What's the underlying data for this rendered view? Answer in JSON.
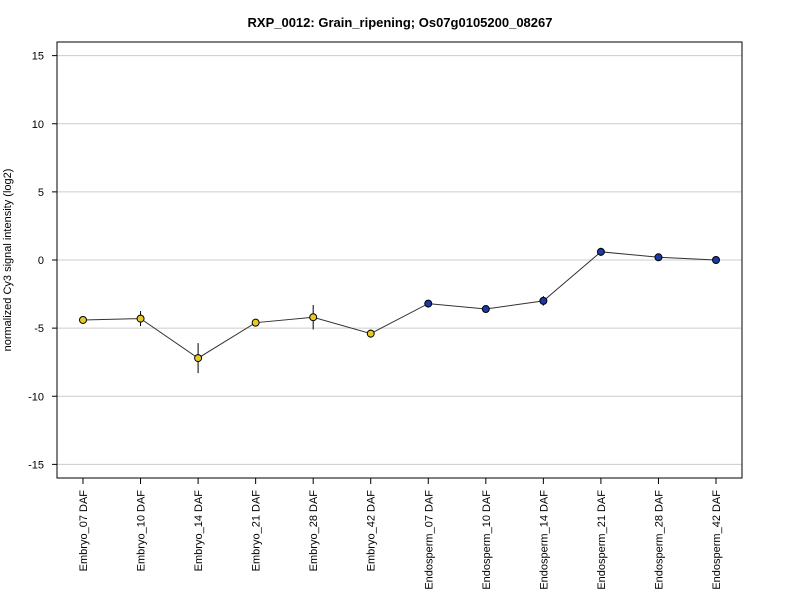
{
  "chart_data": {
    "type": "line",
    "title": "RXP_0012: Grain_ripening; Os07g0105200_08267",
    "xlabel": "",
    "ylabel": "normalized Cy3 signal intensity (log2)",
    "ylim": [
      -16,
      16
    ],
    "yticks": [
      -15,
      -10,
      -5,
      0,
      5,
      10,
      15
    ],
    "grid": true,
    "categories": [
      "Embryo_07 DAF",
      "Embryo_10 DAF",
      "Embryo_14 DAF",
      "Embryo_21 DAF",
      "Embryo_28 DAF",
      "Embryo_42 DAF",
      "Endosperm_07 DAF",
      "Endosperm_10 DAF",
      "Endosperm_14 DAF",
      "Endosperm_21 DAF",
      "Endosperm_28 DAF",
      "Endosperm_42 DAF"
    ],
    "values": [
      -4.4,
      -4.3,
      -7.2,
      -4.6,
      -4.2,
      -5.4,
      -3.2,
      -3.6,
      -3.0,
      0.6,
      0.2,
      0.0
    ],
    "error": [
      0.15,
      0.55,
      1.1,
      0.15,
      0.9,
      0.3,
      0.1,
      0.15,
      0.35,
      0.3,
      0.1,
      0.1
    ],
    "point_colors": [
      "#e8c926",
      "#e8c926",
      "#e8c926",
      "#e8c926",
      "#e8c926",
      "#e8c926",
      "#1c3aa6",
      "#1c3aa6",
      "#1c3aa6",
      "#1c3aa6",
      "#1c3aa6",
      "#1c3aa6"
    ],
    "line_color": "#333333",
    "grid_color": "#cccccc"
  }
}
